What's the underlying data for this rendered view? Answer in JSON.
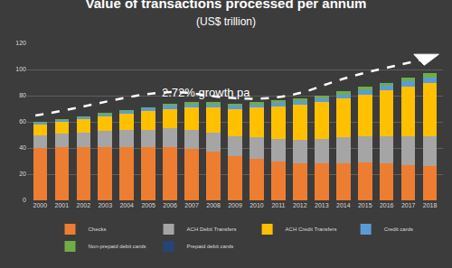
{
  "chart_data": {
    "type": "bar",
    "title": "Value of transactions processed per annum",
    "subtitle": "(US$ trillion)",
    "annotations": [
      "2.72% growth pa"
    ],
    "stacked": true,
    "grid": true,
    "legend": "bottom",
    "categories": [
      "2000",
      "2001",
      "2002",
      "2003",
      "2004",
      "2005",
      "2006",
      "2007",
      "2008",
      "2009",
      "2010",
      "2011",
      "2012",
      "2013",
      "2014",
      "2015",
      "2016",
      "2017",
      "2018"
    ],
    "ylim": [
      0,
      120
    ],
    "yticks": [
      0,
      20,
      40,
      60,
      80,
      100,
      120
    ],
    "series": [
      {
        "name": "Checks",
        "color": "#ed7d31",
        "values": [
          40,
          41,
          41,
          41,
          41,
          41,
          41,
          39,
          37,
          34,
          32,
          30,
          28,
          28,
          28,
          29,
          28,
          27,
          26
        ]
      },
      {
        "name": "ACH Debit Transfers",
        "color": "#a5a5a5",
        "values": [
          10,
          10,
          11,
          12,
          13,
          13,
          14,
          15,
          15,
          15,
          16,
          17,
          18,
          19,
          20,
          20,
          21,
          22,
          23
        ]
      },
      {
        "name": "ACH Credit Transfers",
        "color": "#ffc000",
        "values": [
          8,
          9,
          10,
          11,
          12,
          14,
          15,
          17,
          19,
          21,
          23,
          25,
          27,
          28,
          30,
          32,
          35,
          38,
          41
        ]
      },
      {
        "name": "Credit cards",
        "color": "#5b9bd5",
        "values": [
          1.5,
          1.6,
          1.7,
          1.8,
          2.0,
          2.1,
          2.3,
          2.4,
          2.4,
          2.2,
          2.3,
          2.4,
          2.6,
          2.8,
          3.0,
          3.2,
          3.4,
          3.7,
          4.0
        ]
      },
      {
        "name": "Non-prepaid debit cards",
        "color": "#70ad47",
        "values": [
          0.5,
          0.6,
          0.7,
          0.9,
          1.0,
          1.2,
          1.3,
          1.5,
          1.6,
          1.7,
          1.8,
          1.9,
          2.0,
          2.2,
          2.3,
          2.5,
          2.6,
          2.8,
          3.0
        ]
      },
      {
        "name": "Prepaid debit cards",
        "color": "#264478",
        "values": [
          0.1,
          0.1,
          0.1,
          0.1,
          0.1,
          0.1,
          0.2,
          0.2,
          0.2,
          0.2,
          0.2,
          0.2,
          0.3,
          0.3,
          0.3,
          0.3,
          0.3,
          0.3,
          0.3
        ]
      }
    ]
  }
}
